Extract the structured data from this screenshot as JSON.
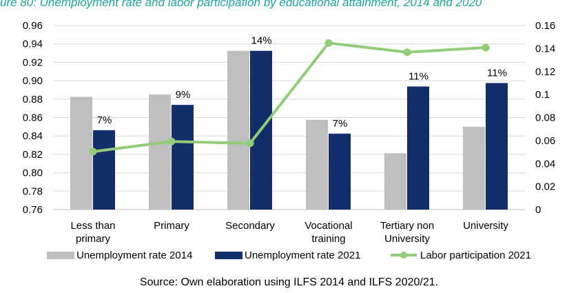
{
  "chart_data": {
    "type": "bar",
    "title": "ure 80: Unemployment rate and labor participation by educational attainment, 2014 and 2020",
    "source": "Source: Own elaboration using ILFS 2014 and ILFS 2020/21.",
    "categories": [
      [
        "Less than",
        "primary"
      ],
      [
        "Primary"
      ],
      [
        "Secondary"
      ],
      [
        "Vocational",
        "training"
      ],
      [
        "Tertiary non",
        "University"
      ],
      [
        "University"
      ]
    ],
    "series": [
      {
        "name": "Unemployment rate 2014",
        "type": "bar",
        "axis": "right",
        "color": "#bfbfbf",
        "values": [
          0.098,
          0.1,
          0.138,
          0.078,
          0.049,
          0.072
        ]
      },
      {
        "name": "Unemployment rate 2021",
        "type": "bar",
        "axis": "right",
        "color": "#132f6b",
        "values": [
          0.069,
          0.091,
          0.138,
          0.066,
          0.107,
          0.11
        ]
      },
      {
        "name": "Labor participation 2021",
        "type": "line",
        "axis": "left",
        "color": "#92cc79",
        "values": [
          0.823,
          0.834,
          0.832,
          0.941,
          0.931,
          0.936
        ]
      }
    ],
    "data_labels": [
      "7%",
      "9%",
      "14%",
      "7%",
      "11%",
      "11%"
    ],
    "y_left": {
      "min": 0.76,
      "max": 0.96,
      "ticks": [
        "0.96",
        "0.94",
        "0.92",
        "0.90",
        "0.88",
        "0.86",
        "0.84",
        "0.82",
        "0.80",
        "0.78",
        "0.76"
      ]
    },
    "y_right": {
      "min": 0,
      "max": 0.16,
      "ticks": [
        "0.16",
        "0.14",
        "0.12",
        "0.1",
        "0.08",
        "0.06",
        "0.04",
        "0.02",
        "0"
      ]
    },
    "grid": true,
    "legend_position": "bottom"
  }
}
